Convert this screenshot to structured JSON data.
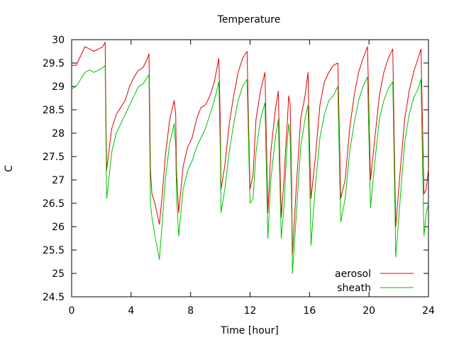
{
  "chart_data": {
    "type": "line",
    "title": "Temperature",
    "xlabel": "Time [hour]",
    "ylabel": "C",
    "xlim": [
      0,
      24
    ],
    "ylim": [
      24.5,
      30
    ],
    "xticks": [
      0,
      4,
      8,
      12,
      16,
      20,
      24
    ],
    "yticks": [
      24.5,
      25,
      25.5,
      26,
      26.5,
      27,
      27.5,
      28,
      28.5,
      29,
      29.5,
      30
    ],
    "grid": false,
    "legend_position": "bottom-right",
    "series": [
      {
        "name": "aerosol",
        "color": "#e00000",
        "points": [
          [
            0,
            29.45
          ],
          [
            0.3,
            29.45
          ],
          [
            0.6,
            29.65
          ],
          [
            0.9,
            29.85
          ],
          [
            1.2,
            29.8
          ],
          [
            1.5,
            29.75
          ],
          [
            1.8,
            29.8
          ],
          [
            2.1,
            29.85
          ],
          [
            2.25,
            29.95
          ],
          [
            2.3,
            28.6
          ],
          [
            2.35,
            27.2
          ],
          [
            2.5,
            27.6
          ],
          [
            2.7,
            28.1
          ],
          [
            3.0,
            28.4
          ],
          [
            3.3,
            28.55
          ],
          [
            3.6,
            28.7
          ],
          [
            3.9,
            29.0
          ],
          [
            4.2,
            29.2
          ],
          [
            4.5,
            29.35
          ],
          [
            4.8,
            29.4
          ],
          [
            5.1,
            29.6
          ],
          [
            5.2,
            29.7
          ],
          [
            5.25,
            28.6
          ],
          [
            5.3,
            27.2
          ],
          [
            5.4,
            26.7
          ],
          [
            5.6,
            26.5
          ],
          [
            5.9,
            26.05
          ],
          [
            6.1,
            26.7
          ],
          [
            6.3,
            27.5
          ],
          [
            6.6,
            28.3
          ],
          [
            6.9,
            28.7
          ],
          [
            7.0,
            28.4
          ],
          [
            7.05,
            27.2
          ],
          [
            7.2,
            26.3
          ],
          [
            7.5,
            27.3
          ],
          [
            7.8,
            27.7
          ],
          [
            8.1,
            27.9
          ],
          [
            8.4,
            28.3
          ],
          [
            8.7,
            28.55
          ],
          [
            9.0,
            28.6
          ],
          [
            9.3,
            28.8
          ],
          [
            9.6,
            29.1
          ],
          [
            9.9,
            29.6
          ],
          [
            10.0,
            28.2
          ],
          [
            10.05,
            26.8
          ],
          [
            10.3,
            27.3
          ],
          [
            10.6,
            28.2
          ],
          [
            10.9,
            28.8
          ],
          [
            11.2,
            29.3
          ],
          [
            11.5,
            29.6
          ],
          [
            11.8,
            29.75
          ],
          [
            11.9,
            28.2
          ],
          [
            12.0,
            26.8
          ],
          [
            12.2,
            27.1
          ],
          [
            12.4,
            28.3
          ],
          [
            12.7,
            28.9
          ],
          [
            13.0,
            29.3
          ],
          [
            13.1,
            27.8
          ],
          [
            13.2,
            26.3
          ],
          [
            13.4,
            27.6
          ],
          [
            13.7,
            28.5
          ],
          [
            13.9,
            28.9
          ],
          [
            14.0,
            27.5
          ],
          [
            14.1,
            26.2
          ],
          [
            14.3,
            27.1
          ],
          [
            14.4,
            27.7
          ],
          [
            14.5,
            28.2
          ],
          [
            14.6,
            28.8
          ],
          [
            14.7,
            28.6
          ],
          [
            14.8,
            26.8
          ],
          [
            14.85,
            25.4
          ],
          [
            15.1,
            26.8
          ],
          [
            15.4,
            28.3
          ],
          [
            15.7,
            28.8
          ],
          [
            15.9,
            29.3
          ],
          [
            16.0,
            27.8
          ],
          [
            16.1,
            26.6
          ],
          [
            16.4,
            27.5
          ],
          [
            16.7,
            28.6
          ],
          [
            17.0,
            29.1
          ],
          [
            17.3,
            29.3
          ],
          [
            17.6,
            29.45
          ],
          [
            17.9,
            29.5
          ],
          [
            18.0,
            28.1
          ],
          [
            18.1,
            26.6
          ],
          [
            18.4,
            27.0
          ],
          [
            18.7,
            28.1
          ],
          [
            19.0,
            28.8
          ],
          [
            19.3,
            29.3
          ],
          [
            19.6,
            29.6
          ],
          [
            19.9,
            29.85
          ],
          [
            20.0,
            28.4
          ],
          [
            20.1,
            27.0
          ],
          [
            20.4,
            27.9
          ],
          [
            20.7,
            28.8
          ],
          [
            21.0,
            29.3
          ],
          [
            21.3,
            29.6
          ],
          [
            21.6,
            29.8
          ],
          [
            21.7,
            27.8
          ],
          [
            21.8,
            26.0
          ],
          [
            22.1,
            27.2
          ],
          [
            22.4,
            28.3
          ],
          [
            22.7,
            28.9
          ],
          [
            23.0,
            29.3
          ],
          [
            23.3,
            29.6
          ],
          [
            23.5,
            29.8
          ],
          [
            23.6,
            28.2
          ],
          [
            23.7,
            26.7
          ],
          [
            23.85,
            26.8
          ],
          [
            24.0,
            27.25
          ]
        ]
      },
      {
        "name": "sheath",
        "color": "#00c000",
        "points": [
          [
            0,
            28.95
          ],
          [
            0.3,
            29.0
          ],
          [
            0.6,
            29.15
          ],
          [
            0.9,
            29.3
          ],
          [
            1.2,
            29.35
          ],
          [
            1.5,
            29.3
          ],
          [
            1.8,
            29.35
          ],
          [
            2.1,
            29.4
          ],
          [
            2.25,
            29.45
          ],
          [
            2.3,
            28.1
          ],
          [
            2.35,
            26.6
          ],
          [
            2.5,
            27.0
          ],
          [
            2.7,
            27.6
          ],
          [
            3.0,
            28.0
          ],
          [
            3.3,
            28.2
          ],
          [
            3.6,
            28.4
          ],
          [
            3.9,
            28.6
          ],
          [
            4.2,
            28.8
          ],
          [
            4.5,
            29.0
          ],
          [
            4.8,
            29.05
          ],
          [
            5.1,
            29.2
          ],
          [
            5.2,
            29.25
          ],
          [
            5.25,
            27.9
          ],
          [
            5.3,
            26.5
          ],
          [
            5.4,
            26.2
          ],
          [
            5.6,
            25.8
          ],
          [
            5.9,
            25.3
          ],
          [
            6.1,
            26.1
          ],
          [
            6.3,
            27.0
          ],
          [
            6.6,
            27.8
          ],
          [
            6.9,
            28.2
          ],
          [
            7.0,
            27.7
          ],
          [
            7.05,
            26.7
          ],
          [
            7.2,
            25.8
          ],
          [
            7.5,
            26.8
          ],
          [
            7.8,
            27.2
          ],
          [
            8.1,
            27.4
          ],
          [
            8.4,
            27.7
          ],
          [
            8.7,
            27.9
          ],
          [
            9.0,
            28.1
          ],
          [
            9.3,
            28.4
          ],
          [
            9.6,
            28.7
          ],
          [
            9.9,
            29.1
          ],
          [
            10.0,
            27.6
          ],
          [
            10.05,
            26.3
          ],
          [
            10.3,
            26.8
          ],
          [
            10.6,
            27.6
          ],
          [
            10.9,
            28.2
          ],
          [
            11.2,
            28.7
          ],
          [
            11.5,
            29.0
          ],
          [
            11.8,
            29.15
          ],
          [
            11.9,
            27.8
          ],
          [
            12.0,
            26.5
          ],
          [
            12.2,
            26.6
          ],
          [
            12.4,
            27.6
          ],
          [
            12.7,
            28.3
          ],
          [
            13.0,
            28.65
          ],
          [
            13.1,
            27.2
          ],
          [
            13.2,
            25.75
          ],
          [
            13.4,
            27.0
          ],
          [
            13.7,
            27.9
          ],
          [
            13.9,
            28.3
          ],
          [
            14.0,
            27.0
          ],
          [
            14.1,
            25.75
          ],
          [
            14.3,
            26.5
          ],
          [
            14.4,
            27.2
          ],
          [
            14.5,
            27.8
          ],
          [
            14.6,
            28.2
          ],
          [
            14.7,
            27.9
          ],
          [
            14.8,
            26.3
          ],
          [
            14.85,
            25.0
          ],
          [
            15.1,
            26.2
          ],
          [
            15.4,
            27.7
          ],
          [
            15.7,
            28.3
          ],
          [
            15.9,
            28.6
          ],
          [
            16.0,
            27.2
          ],
          [
            16.1,
            25.6
          ],
          [
            16.4,
            26.9
          ],
          [
            16.7,
            27.9
          ],
          [
            17.0,
            28.4
          ],
          [
            17.3,
            28.7
          ],
          [
            17.6,
            28.8
          ],
          [
            17.9,
            29.0
          ],
          [
            18.0,
            27.5
          ],
          [
            18.1,
            26.1
          ],
          [
            18.4,
            26.6
          ],
          [
            18.7,
            27.6
          ],
          [
            19.0,
            28.2
          ],
          [
            19.3,
            28.7
          ],
          [
            19.6,
            29.0
          ],
          [
            19.9,
            29.2
          ],
          [
            20.0,
            27.8
          ],
          [
            20.1,
            26.4
          ],
          [
            20.4,
            27.4
          ],
          [
            20.7,
            28.3
          ],
          [
            21.0,
            28.7
          ],
          [
            21.3,
            28.95
          ],
          [
            21.6,
            29.1
          ],
          [
            21.7,
            27.2
          ],
          [
            21.8,
            25.35
          ],
          [
            22.1,
            26.6
          ],
          [
            22.4,
            27.8
          ],
          [
            22.7,
            28.4
          ],
          [
            23.0,
            28.75
          ],
          [
            23.3,
            28.95
          ],
          [
            23.5,
            29.15
          ],
          [
            23.6,
            27.4
          ],
          [
            23.7,
            25.8
          ],
          [
            23.85,
            26.3
          ],
          [
            24.0,
            26.5
          ]
        ]
      }
    ]
  }
}
